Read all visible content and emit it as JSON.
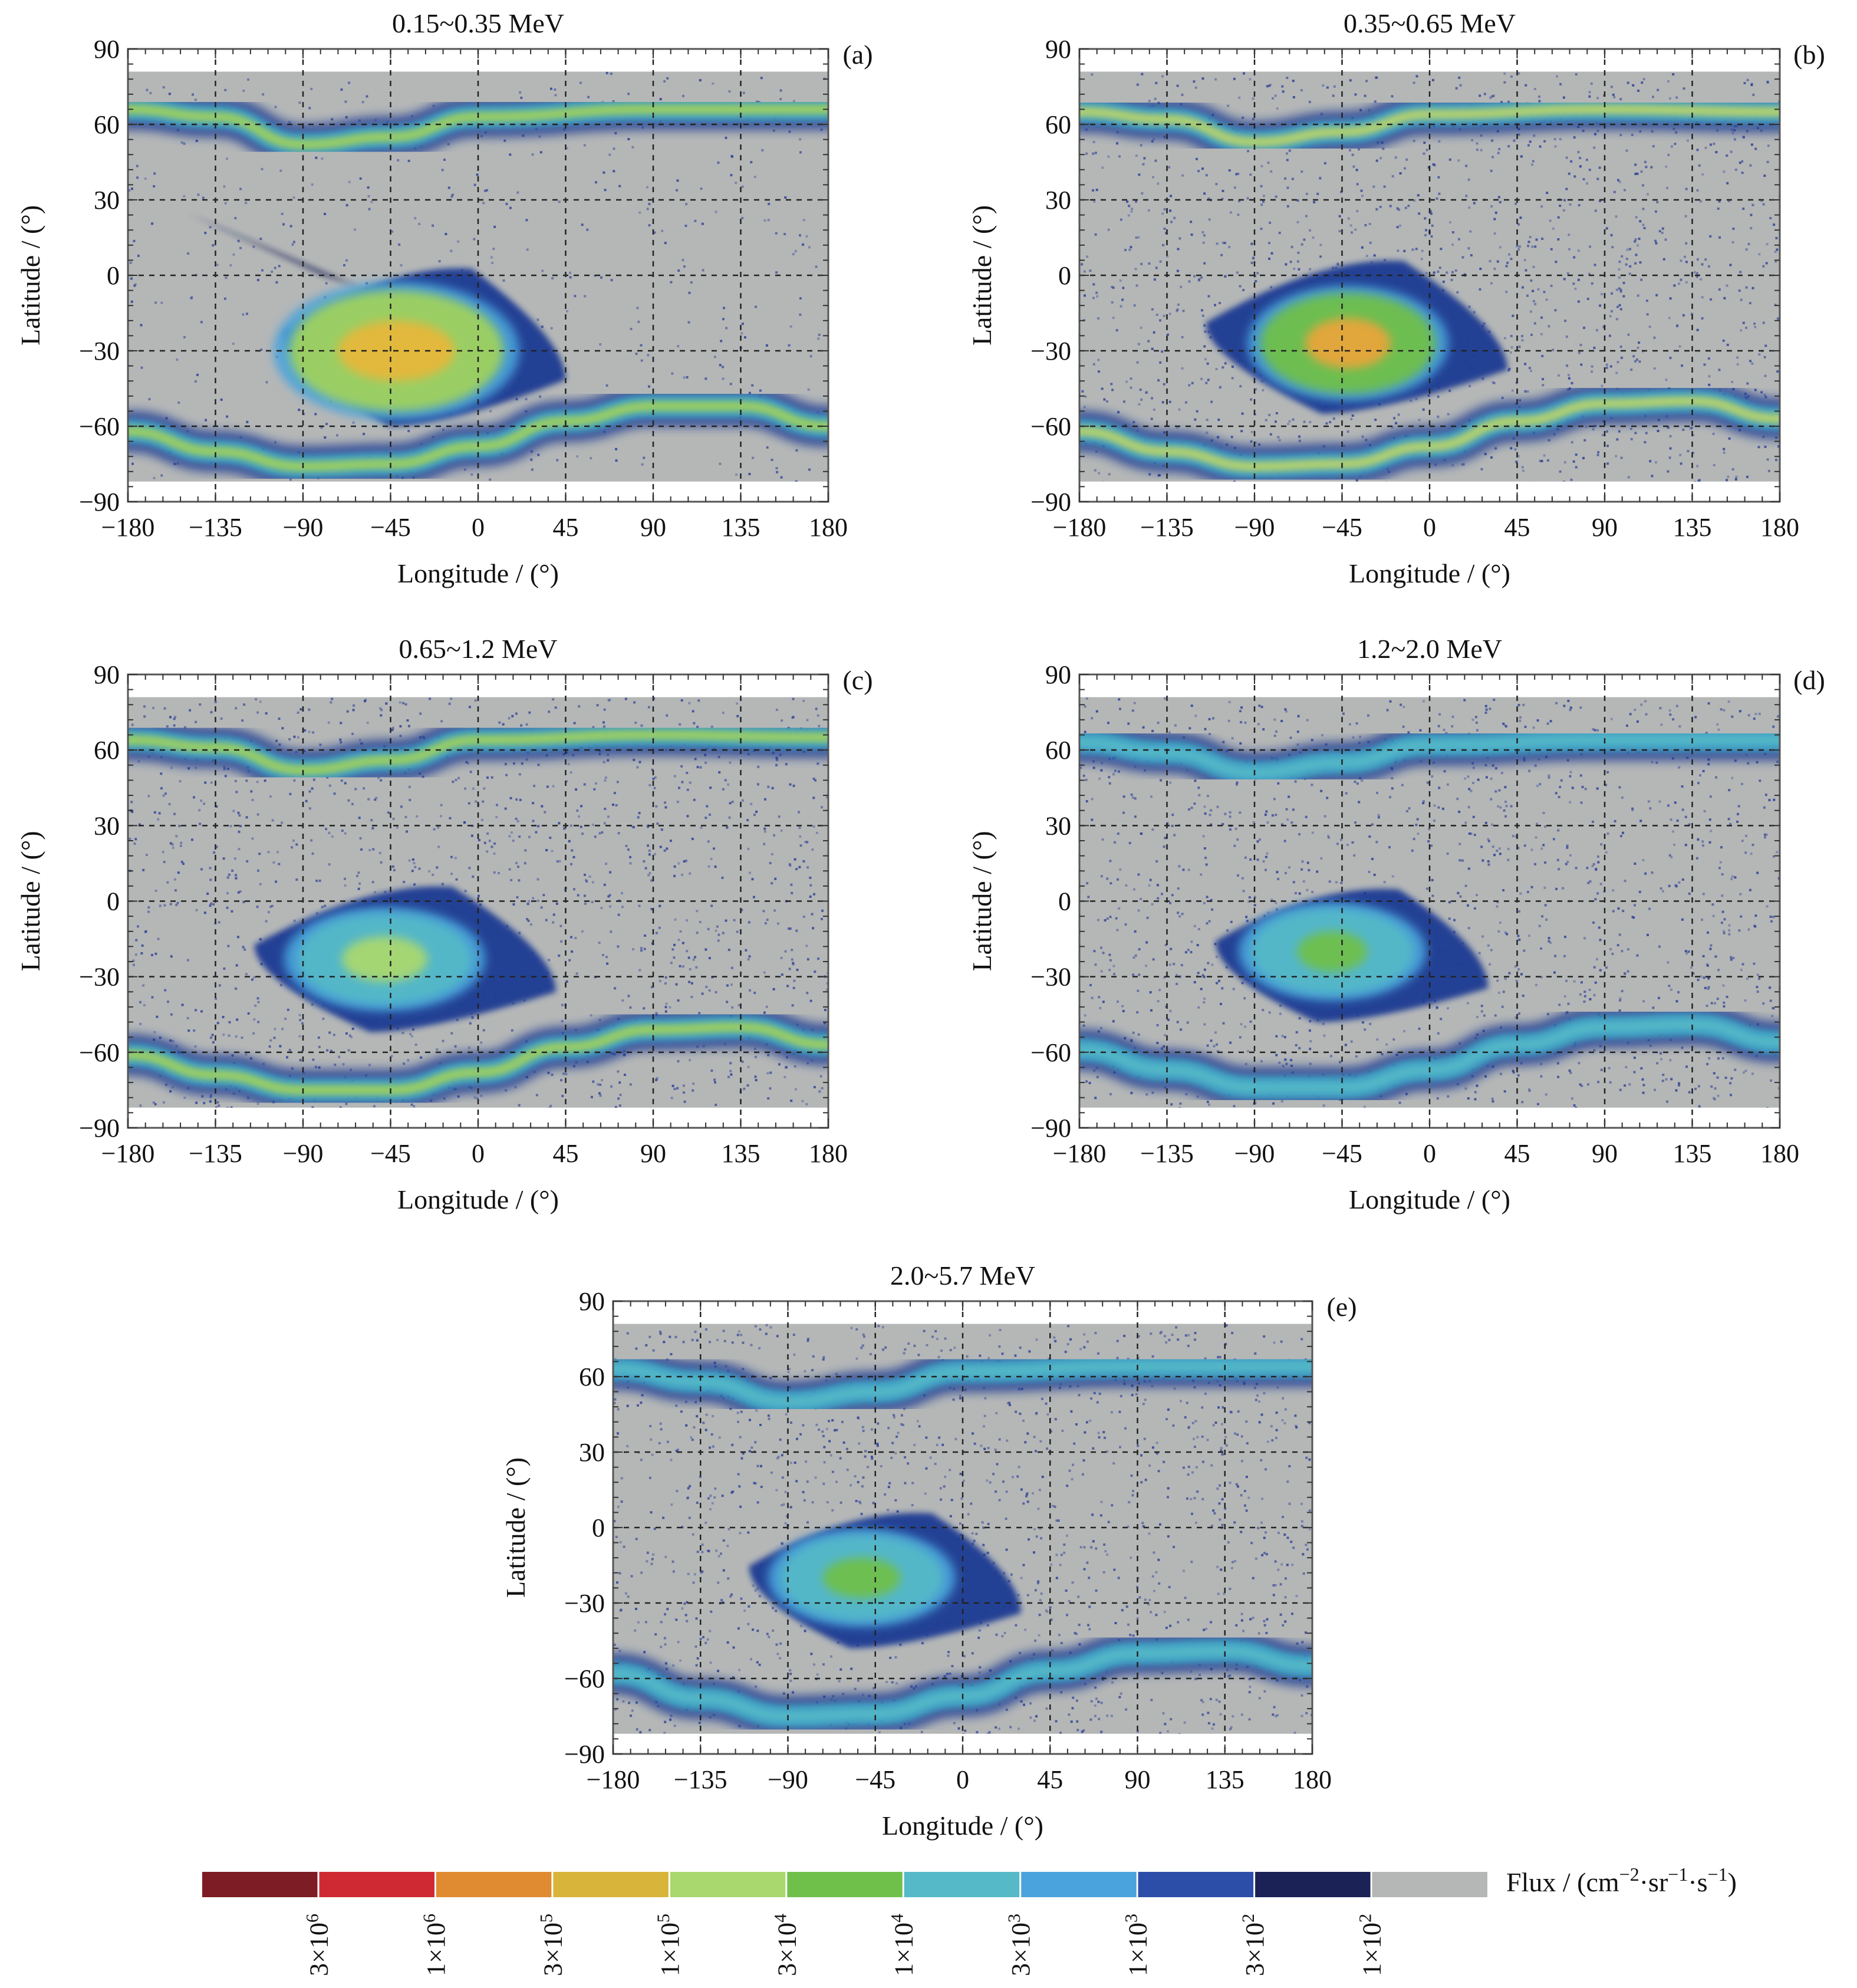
{
  "colors": {
    "background_gray": "#b5b7b7",
    "frame": "#555555",
    "grid": "#222222"
  },
  "chart_data": [
    {
      "type": "heatmap",
      "panel_label": "(a)",
      "title": "0.15~0.35 MeV",
      "xlabel": "Longitude / (°)",
      "ylabel": "Latitude / (°)",
      "xlim": [
        -180,
        180
      ],
      "ylim": [
        -90,
        90
      ],
      "xticks": [
        "−180",
        "−135",
        "−90",
        "−45",
        "0",
        "45",
        "90",
        "135",
        "180"
      ],
      "yticks": [
        "90",
        "60",
        "30",
        "0",
        "−30",
        "−60",
        "−90"
      ],
      "grid": true,
      "data_lat_range": [
        -82,
        81
      ],
      "saa_anomaly": {
        "core_center_lon": -42,
        "core_center_lat": -30,
        "core_half_width_lon": 30,
        "core_half_height_lat": 12,
        "core_color": "#e6b83a",
        "mid_half_width_lon": 55,
        "mid_half_height_lat": 24,
        "mid_color": "#9fd15f",
        "outer_edge_lon": [
          -100,
          45
        ],
        "outer_edge_lat": [
          -60,
          5
        ],
        "outer_color": "#1e3b93",
        "extension_to_lon": -150,
        "extension_to_lat": 25
      },
      "north_belt": [
        {
          "lon": -180,
          "lat": 66
        },
        {
          "lon": -135,
          "lat": 63
        },
        {
          "lon": -90,
          "lat": 52
        },
        {
          "lon": -45,
          "lat": 55
        },
        {
          "lon": 0,
          "lat": 63
        },
        {
          "lon": 90,
          "lat": 66
        },
        {
          "lon": 180,
          "lat": 66
        }
      ],
      "south_belt": [
        {
          "lon": -180,
          "lat": -62
        },
        {
          "lon": -135,
          "lat": -70
        },
        {
          "lon": -90,
          "lat": -76
        },
        {
          "lon": -45,
          "lat": -75
        },
        {
          "lon": 0,
          "lat": -68
        },
        {
          "lon": 45,
          "lat": -58
        },
        {
          "lon": 90,
          "lat": -52
        },
        {
          "lon": 135,
          "lat": -52
        },
        {
          "lon": 180,
          "lat": -60
        }
      ],
      "belt_peak_color": "#9fd15f"
    },
    {
      "type": "heatmap",
      "panel_label": "(b)",
      "title": "0.35~0.65 MeV",
      "xlabel": "Longitude / (°)",
      "ylabel": "Latitude / (°)",
      "xlim": [
        -180,
        180
      ],
      "ylim": [
        -90,
        90
      ],
      "xticks": [
        "−180",
        "−135",
        "−90",
        "−45",
        "0",
        "45",
        "90",
        "135",
        "180"
      ],
      "yticks": [
        "90",
        "60",
        "30",
        "0",
        "−30",
        "−60",
        "−90"
      ],
      "grid": true,
      "data_lat_range": [
        -82,
        81
      ],
      "saa_anomaly": {
        "core_center_lon": -42,
        "core_center_lat": -27,
        "core_half_width_lon": 22,
        "core_half_height_lat": 10,
        "core_color": "#e8a53a",
        "mid_half_width_lon": 45,
        "mid_half_height_lat": 20,
        "mid_color": "#6fc04b",
        "outer_edge_lon": [
          -115,
          40
        ],
        "outer_edge_lat": [
          -55,
          8
        ],
        "outer_color": "#1e3b93"
      },
      "north_belt": [
        {
          "lon": -180,
          "lat": 65
        },
        {
          "lon": -135,
          "lat": 62
        },
        {
          "lon": -90,
          "lat": 53
        },
        {
          "lon": -45,
          "lat": 57
        },
        {
          "lon": 0,
          "lat": 64
        },
        {
          "lon": 90,
          "lat": 66
        },
        {
          "lon": 180,
          "lat": 65
        }
      ],
      "south_belt": [
        {
          "lon": -180,
          "lat": -62
        },
        {
          "lon": -135,
          "lat": -70
        },
        {
          "lon": -90,
          "lat": -76
        },
        {
          "lon": -45,
          "lat": -75
        },
        {
          "lon": 0,
          "lat": -68
        },
        {
          "lon": 45,
          "lat": -58
        },
        {
          "lon": 90,
          "lat": -51
        },
        {
          "lon": 135,
          "lat": -50
        },
        {
          "lon": 180,
          "lat": -57
        }
      ],
      "belt_peak_color": "#b9d46a"
    },
    {
      "type": "heatmap",
      "panel_label": "(c)",
      "title": "0.65~1.2 MeV",
      "xlabel": "Longitude / (°)",
      "ylabel": "Latitude / (°)",
      "xlim": [
        -180,
        180
      ],
      "ylim": [
        -90,
        90
      ],
      "xticks": [
        "−180",
        "−135",
        "−90",
        "−45",
        "0",
        "45",
        "90",
        "135",
        "180"
      ],
      "yticks": [
        "90",
        "60",
        "30",
        "0",
        "−30",
        "−60",
        "−90"
      ],
      "grid": true,
      "data_lat_range": [
        -82,
        81
      ],
      "saa_anomaly": {
        "core_center_lon": -48,
        "core_center_lat": -23,
        "core_half_width_lon": 22,
        "core_half_height_lat": 9,
        "core_color": "#a9d86f",
        "mid_half_width_lon": 45,
        "mid_half_height_lat": 18,
        "mid_color": "#55b9c8",
        "outer_edge_lon": [
          -115,
          40
        ],
        "outer_edge_lat": [
          -52,
          8
        ],
        "outer_color": "#1e3b93"
      },
      "north_belt": [
        {
          "lon": -180,
          "lat": 64
        },
        {
          "lon": -135,
          "lat": 61
        },
        {
          "lon": -90,
          "lat": 52
        },
        {
          "lon": -45,
          "lat": 56
        },
        {
          "lon": 0,
          "lat": 64
        },
        {
          "lon": 90,
          "lat": 66
        },
        {
          "lon": 180,
          "lat": 65
        }
      ],
      "south_belt": [
        {
          "lon": -180,
          "lat": -61
        },
        {
          "lon": -135,
          "lat": -69
        },
        {
          "lon": -90,
          "lat": -75
        },
        {
          "lon": -45,
          "lat": -75
        },
        {
          "lon": 0,
          "lat": -68
        },
        {
          "lon": 45,
          "lat": -58
        },
        {
          "lon": 90,
          "lat": -51
        },
        {
          "lon": 135,
          "lat": -50
        },
        {
          "lon": 180,
          "lat": -57
        }
      ],
      "belt_peak_color": "#9fd15f"
    },
    {
      "type": "heatmap",
      "panel_label": "(d)",
      "title": "1.2~2.0 MeV",
      "xlabel": "Longitude / (°)",
      "ylabel": "Latitude / (°)",
      "xlim": [
        -180,
        180
      ],
      "ylim": [
        -90,
        90
      ],
      "xticks": [
        "−180",
        "−135",
        "−90",
        "−45",
        "0",
        "45",
        "90",
        "135",
        "180"
      ],
      "yticks": [
        "90",
        "60",
        "30",
        "0",
        "−30",
        "−60",
        "−90"
      ],
      "grid": true,
      "data_lat_range": [
        -82,
        81
      ],
      "saa_anomaly": {
        "core_center_lon": -50,
        "core_center_lat": -20,
        "core_half_width_lon": 18,
        "core_half_height_lat": 8,
        "core_color": "#6fc04b",
        "mid_half_width_lon": 42,
        "mid_half_height_lat": 17,
        "mid_color": "#55b9c8",
        "outer_edge_lon": [
          -110,
          30
        ],
        "outer_edge_lat": [
          -48,
          7
        ],
        "outer_color": "#1e3b93"
      },
      "north_belt": [
        {
          "lon": -180,
          "lat": 63
        },
        {
          "lon": -135,
          "lat": 59
        },
        {
          "lon": -90,
          "lat": 51
        },
        {
          "lon": -45,
          "lat": 55
        },
        {
          "lon": 0,
          "lat": 62
        },
        {
          "lon": 90,
          "lat": 64
        },
        {
          "lon": 180,
          "lat": 64
        }
      ],
      "south_belt": [
        {
          "lon": -180,
          "lat": -59
        },
        {
          "lon": -135,
          "lat": -67
        },
        {
          "lon": -90,
          "lat": -74
        },
        {
          "lon": -45,
          "lat": -74
        },
        {
          "lon": 0,
          "lat": -67
        },
        {
          "lon": 45,
          "lat": -57
        },
        {
          "lon": 90,
          "lat": -50
        },
        {
          "lon": 135,
          "lat": -49
        },
        {
          "lon": 180,
          "lat": -56
        }
      ],
      "belt_peak_color": "#55b9c8"
    },
    {
      "type": "heatmap",
      "panel_label": "(e)",
      "title": "2.0~5.7 MeV",
      "xlabel": "Longitude / (°)",
      "ylabel": "Latitude / (°)",
      "xlim": [
        -180,
        180
      ],
      "ylim": [
        -90,
        90
      ],
      "xticks": [
        "−180",
        "−135",
        "−90",
        "−45",
        "0",
        "45",
        "90",
        "135",
        "180"
      ],
      "yticks": [
        "90",
        "60",
        "30",
        "0",
        "−30",
        "−60",
        "−90"
      ],
      "grid": true,
      "data_lat_range": [
        -82,
        81
      ],
      "saa_anomaly": {
        "core_center_lon": -52,
        "core_center_lat": -20,
        "core_half_width_lon": 20,
        "core_half_height_lat": 8,
        "core_color": "#6fc04b",
        "mid_half_width_lon": 42,
        "mid_half_height_lat": 17,
        "mid_color": "#55b9c8",
        "outer_edge_lon": [
          -110,
          30
        ],
        "outer_edge_lat": [
          -48,
          8
        ],
        "outer_color": "#1e3b93"
      },
      "north_belt": [
        {
          "lon": -180,
          "lat": 63
        },
        {
          "lon": -135,
          "lat": 58
        },
        {
          "lon": -90,
          "lat": 50
        },
        {
          "lon": -45,
          "lat": 54
        },
        {
          "lon": 0,
          "lat": 62
        },
        {
          "lon": 90,
          "lat": 64
        },
        {
          "lon": 180,
          "lat": 64
        }
      ],
      "south_belt": [
        {
          "lon": -180,
          "lat": -58
        },
        {
          "lon": -135,
          "lat": -68
        },
        {
          "lon": -90,
          "lat": -75
        },
        {
          "lon": -45,
          "lat": -74
        },
        {
          "lon": 0,
          "lat": -67
        },
        {
          "lon": 45,
          "lat": -57
        },
        {
          "lon": 90,
          "lat": -50
        },
        {
          "lon": 135,
          "lat": -49
        },
        {
          "lon": 180,
          "lat": -55
        }
      ],
      "belt_peak_color": "#55b9c8"
    }
  ],
  "colorbar": {
    "label": "Flux / (cm",
    "label_sup1": "−2",
    "label_mid": "·sr",
    "label_sup2": "−1",
    "label_mid2": "·s",
    "label_sup3": "−1",
    "label_end": ")",
    "swatches": [
      {
        "color": "#7d1c24",
        "tick": "3×10",
        "exp": "6"
      },
      {
        "color": "#cf2a33",
        "tick": "1×10",
        "exp": "6"
      },
      {
        "color": "#e08a32",
        "tick": "3×10",
        "exp": "5"
      },
      {
        "color": "#d8b43a",
        "tick": "1×10",
        "exp": "5"
      },
      {
        "color": "#a9d86f",
        "tick": "3×10",
        "exp": "4"
      },
      {
        "color": "#6fc04b",
        "tick": "1×10",
        "exp": "4"
      },
      {
        "color": "#55b9c8",
        "tick": "3×10",
        "exp": "3"
      },
      {
        "color": "#4aa3dc",
        "tick": "1×10",
        "exp": "3"
      },
      {
        "color": "#2c4ea8",
        "tick": "3×10",
        "exp": "2"
      },
      {
        "color": "#1b2256",
        "tick": "1×10",
        "exp": "2"
      },
      {
        "color": "#b5b7b7",
        "tick": "",
        "exp": ""
      }
    ]
  }
}
